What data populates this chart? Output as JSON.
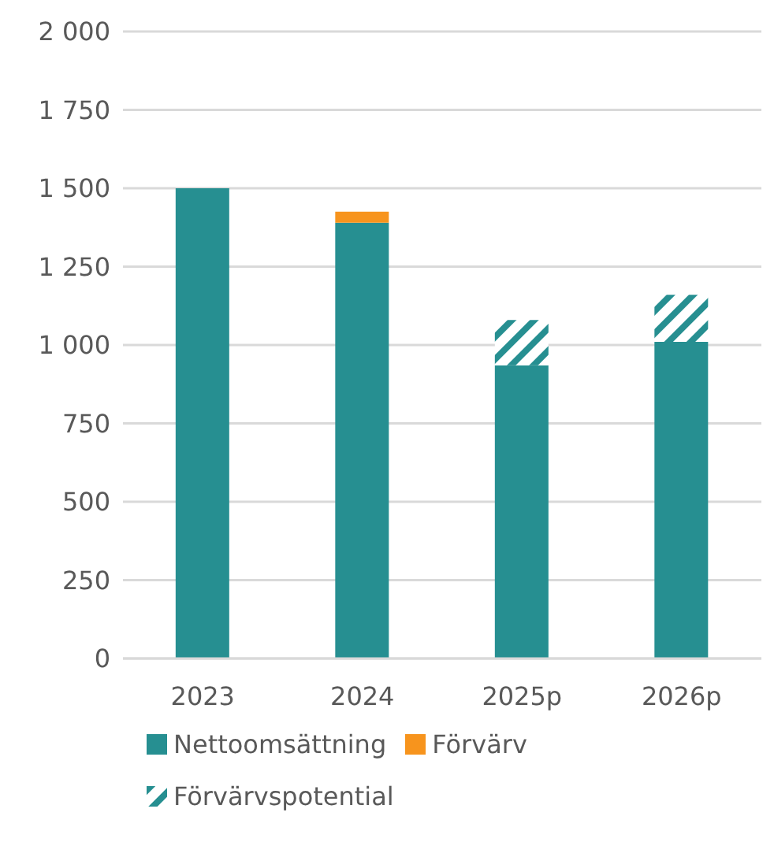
{
  "chart_data": {
    "type": "bar",
    "categories": [
      "2023",
      "2024",
      "2025p",
      "2026p"
    ],
    "stacked": true,
    "series": [
      {
        "name": "Nettoomsättning",
        "color": "#268f91",
        "values": [
          1500,
          1390,
          935,
          1010
        ]
      },
      {
        "name": "Förvärv",
        "color": "#f7941d",
        "values": [
          null,
          35,
          null,
          null
        ]
      },
      {
        "name": "Förvärvspotential",
        "color": "#268f91",
        "values": [
          null,
          null,
          145,
          150
        ]
      }
    ],
    "ylim": [
      0,
      2000
    ],
    "yticks": [
      {
        "value": 0,
        "label": "0"
      },
      {
        "value": 250,
        "label": "250"
      },
      {
        "value": 500,
        "label": "500"
      },
      {
        "value": 750,
        "label": "750"
      },
      {
        "value": 1000,
        "label": "1 000"
      },
      {
        "value": 1250,
        "label": "1 250"
      },
      {
        "value": 1500,
        "label": "1 500"
      },
      {
        "value": 1750,
        "label": "1 750"
      },
      {
        "value": 2000,
        "label": "2 000"
      }
    ],
    "grid": "y",
    "legend": "bottom"
  }
}
